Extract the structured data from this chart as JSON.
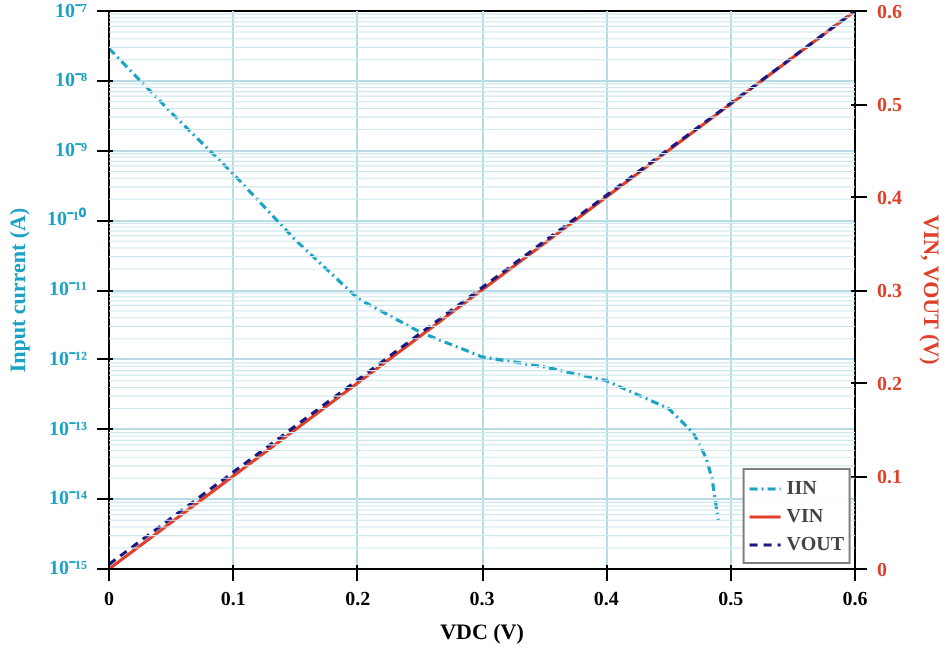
{
  "chart_data": {
    "type": "line",
    "xlabel": "VDC (V)",
    "ylabel": "Input current (A)",
    "y2label": "VIN, VOUT (V)",
    "xlim": [
      0,
      0.6
    ],
    "xticks": [
      0,
      0.1,
      0.2,
      0.3,
      0.4,
      0.5,
      0.6
    ],
    "ylim": [
      1e-15,
      1e-07
    ],
    "yticks": [
      {
        "value": 1e-15,
        "label": "10⁻¹⁵"
      },
      {
        "value": 1e-14,
        "label": "10⁻¹⁴"
      },
      {
        "value": 1e-13,
        "label": "10⁻¹³"
      },
      {
        "value": 1e-12,
        "label": "10⁻¹²"
      },
      {
        "value": 1e-11,
        "label": "10⁻¹¹"
      },
      {
        "value": 1e-10,
        "label": "10⁻¹⁰"
      },
      {
        "value": 1e-09,
        "label": "10⁻⁹"
      },
      {
        "value": 1e-08,
        "label": "10⁻⁸"
      },
      {
        "value": 1e-07,
        "label": "10⁻⁷"
      }
    ],
    "y2lim": [
      0,
      0.6
    ],
    "y2ticks": [
      0,
      0.1,
      0.2,
      0.3,
      0.4,
      0.5,
      0.6
    ],
    "log": "y",
    "grid": true,
    "legend": "bottom right",
    "series": [
      {
        "name": "IIN",
        "color": "#1ba3c6",
        "line_style": "dashdot",
        "x": [
          0,
          0.05,
          0.1,
          0.15,
          0.2,
          0.25,
          0.3,
          0.35,
          0.4,
          0.45,
          0.47,
          0.48,
          0.485,
          0.49
        ],
        "values": [
          2.9e-08,
          3.5e-09,
          4.6e-10,
          5.2e-11,
          7.6e-12,
          2.5e-12,
          1.1e-12,
          7.9e-13,
          5e-13,
          2e-13,
          8.9e-14,
          4e-14,
          2e-14,
          5e-15
        ]
      },
      {
        "name": "VIN",
        "color": "#e0402a",
        "line_style": "solid",
        "axis": "y2",
        "x": [
          0,
          0.6
        ],
        "values": [
          0,
          0.6
        ]
      },
      {
        "name": "VOUT",
        "color": "#1a1a80",
        "line_style": "dashed",
        "axis": "y2",
        "x": [
          0,
          0.6
        ],
        "values": [
          0.005,
          0.6
        ]
      }
    ]
  }
}
